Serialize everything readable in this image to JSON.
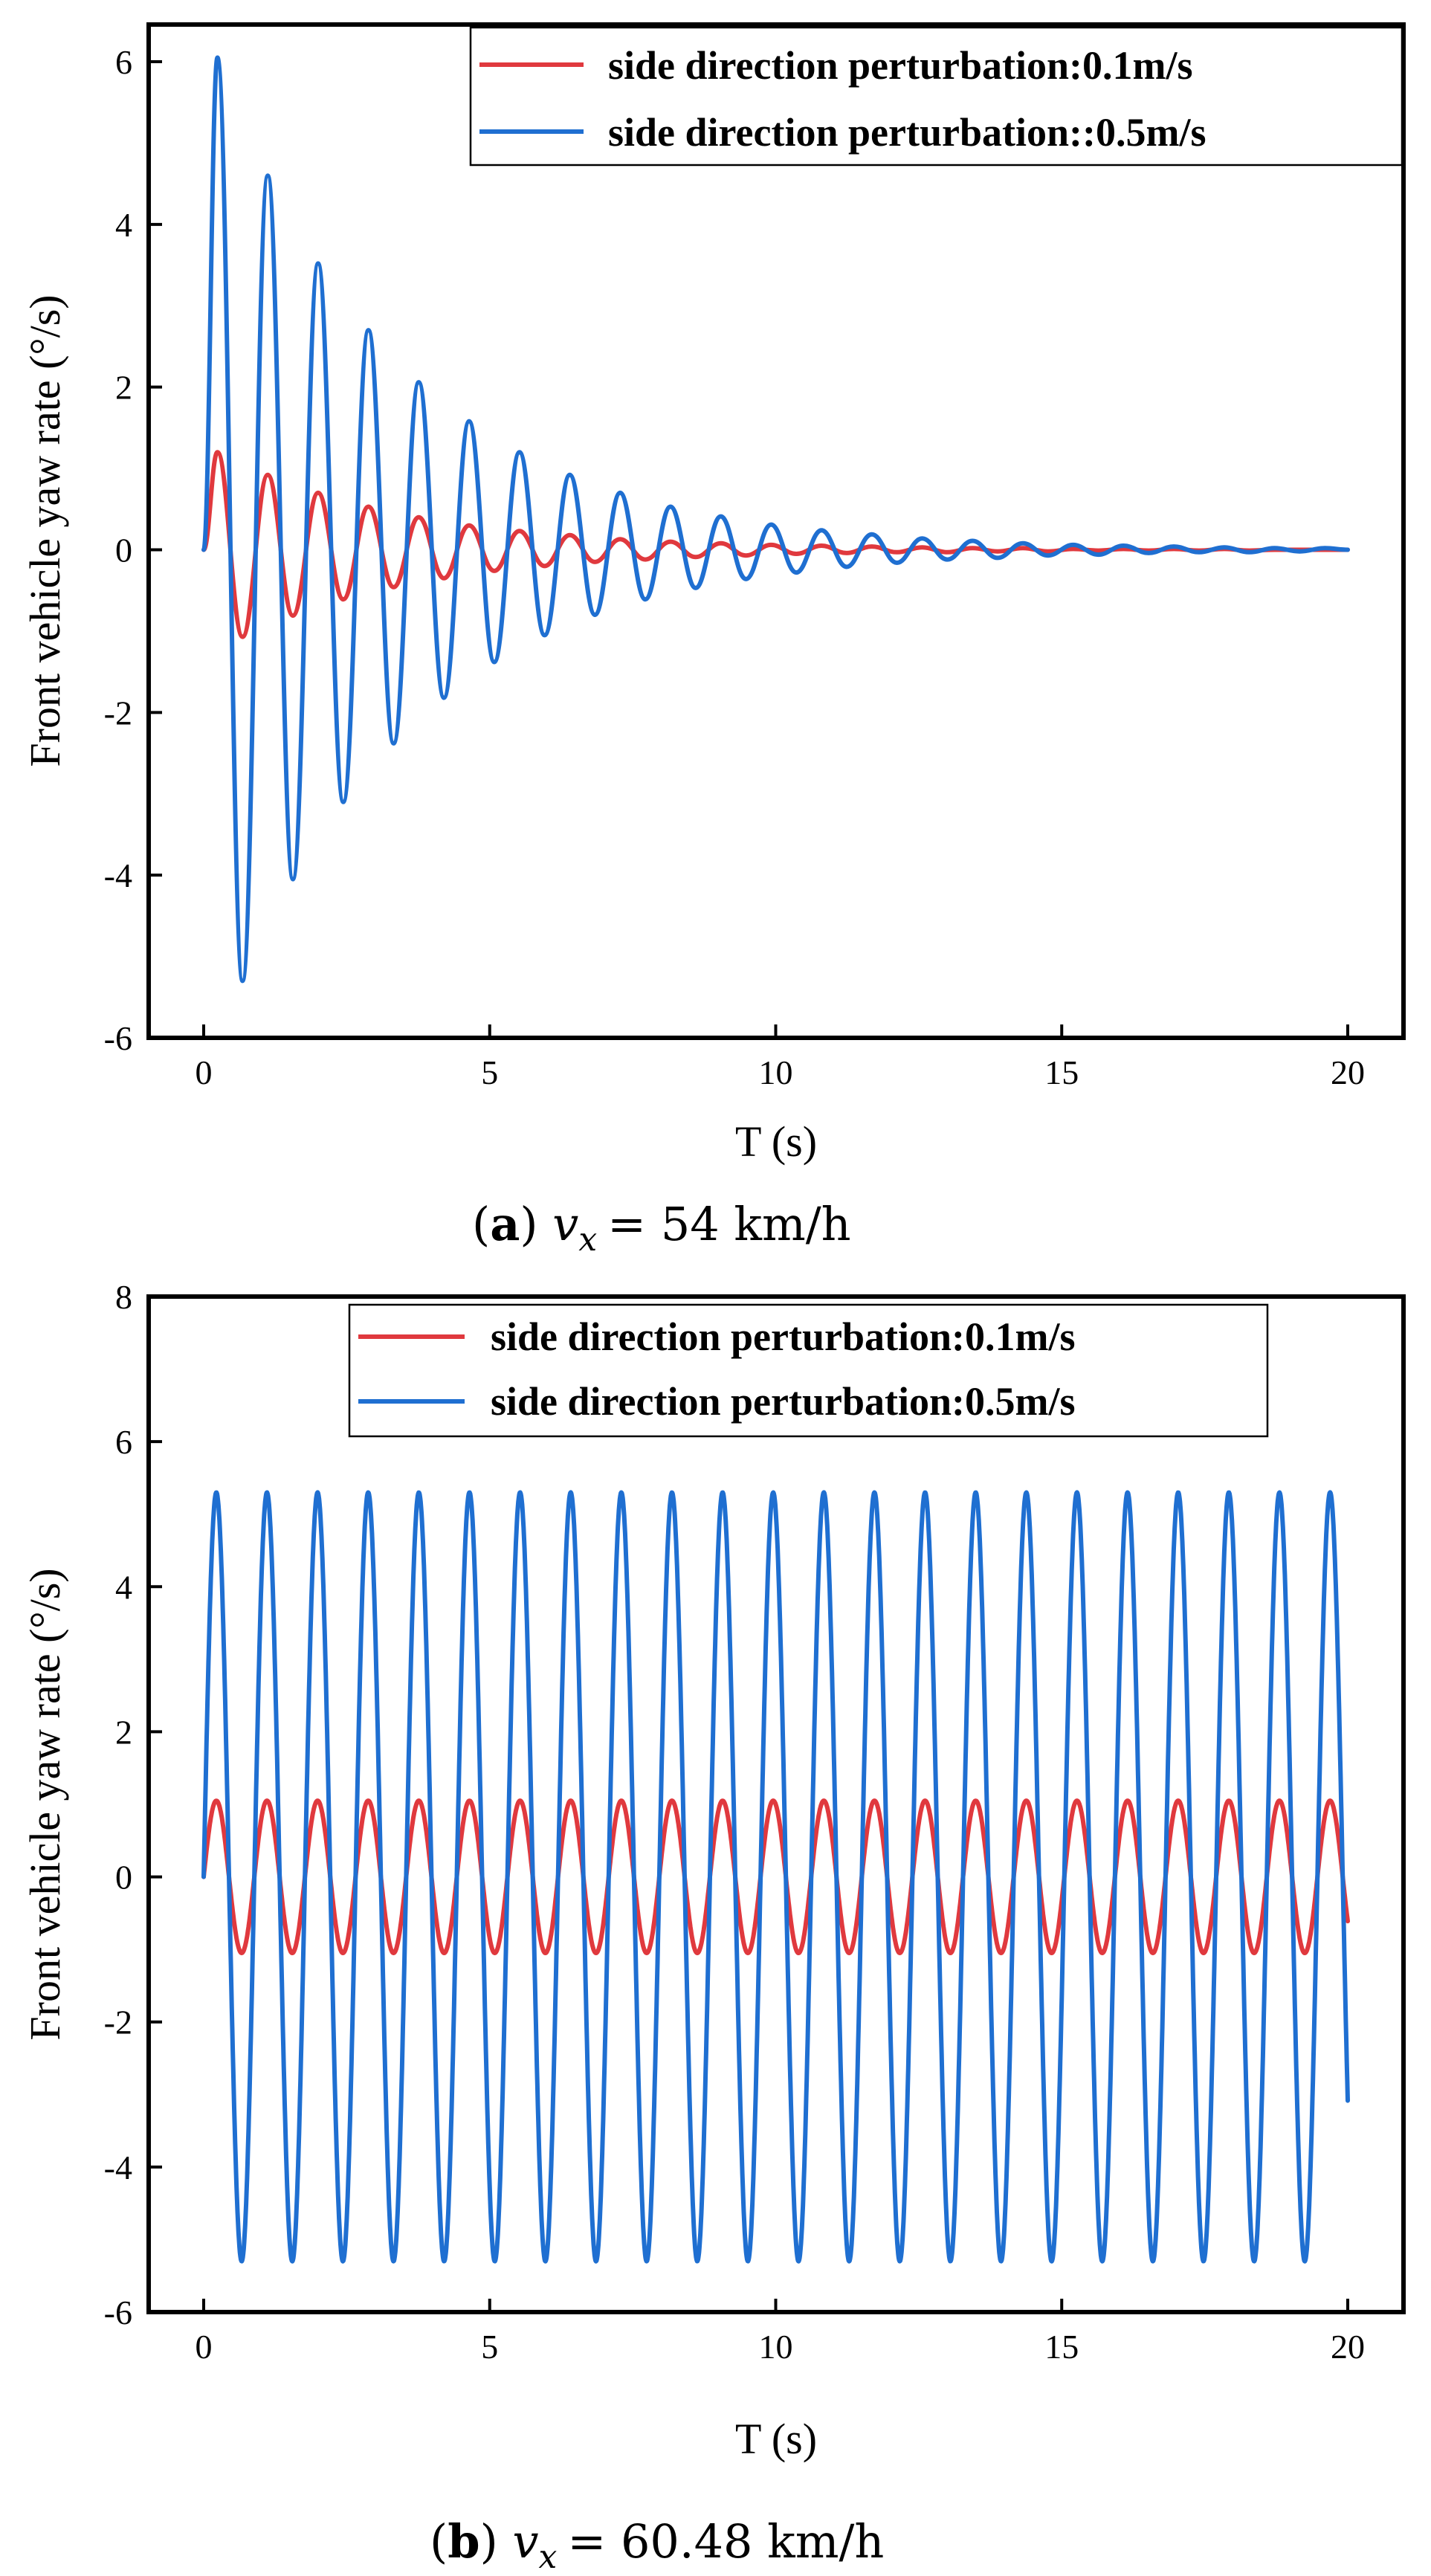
{
  "chart_data": [
    {
      "type": "line",
      "caption": {
        "letter": "a",
        "var": "v",
        "sub": "x",
        "value": "= 54 km/h"
      },
      "xlabel": "T (s)",
      "ylabel": "Front vehicle yaw rate (°/s)",
      "xlim": [
        0,
        20
      ],
      "ylim": [
        -6,
        6
      ],
      "xticks": [
        "0",
        "5",
        "10",
        "15",
        "20"
      ],
      "yticks": [
        "-6",
        "-4",
        "-2",
        "0",
        "2",
        "4",
        "6"
      ],
      "grid": false,
      "legend_position": "top-right",
      "series": [
        {
          "name": "side direction perturbation:0.1m/s",
          "color": "#e0393e",
          "x": [
            0,
            0.24,
            0.68,
            1.12,
            1.56,
            2.0,
            2.44,
            2.88,
            3.32,
            3.76,
            4.2,
            4.64,
            5.08,
            5.52,
            5.96,
            6.4,
            6.84,
            7.28,
            7.72,
            8.16,
            8.6,
            9.04,
            9.48,
            9.92,
            10.36,
            10.8,
            11.24,
            11.68,
            12.12,
            12.56,
            13.0,
            13.44,
            13.88,
            14.32,
            14.76,
            15.2,
            15.64,
            16.08,
            16.52,
            16.96,
            17.4,
            17.84,
            18.28,
            18.72,
            19.16,
            19.6,
            20.0
          ],
          "y": [
            0,
            1.2,
            -1.07,
            0.92,
            -0.81,
            0.7,
            -0.61,
            0.53,
            -0.46,
            0.4,
            -0.35,
            0.3,
            -0.26,
            0.23,
            -0.2,
            0.18,
            -0.15,
            0.13,
            -0.12,
            0.1,
            -0.09,
            0.08,
            -0.07,
            0.06,
            -0.05,
            0.05,
            -0.04,
            0.04,
            -0.03,
            0.03,
            -0.03,
            0.02,
            -0.02,
            0.02,
            -0.02,
            0.01,
            -0.01,
            0.01,
            -0.01,
            0.01,
            -0.01,
            0.01,
            -0.01,
            0,
            0,
            0,
            0
          ]
        },
        {
          "name": "side direction perturbation::0.5m/s",
          "color": "#1f6fd1",
          "x": [
            0,
            0.24,
            0.68,
            1.12,
            1.56,
            2.0,
            2.44,
            2.88,
            3.32,
            3.76,
            4.2,
            4.64,
            5.08,
            5.52,
            5.96,
            6.4,
            6.84,
            7.28,
            7.72,
            8.16,
            8.6,
            9.04,
            9.48,
            9.92,
            10.36,
            10.8,
            11.24,
            11.68,
            12.12,
            12.56,
            13.0,
            13.44,
            13.88,
            14.32,
            14.76,
            15.2,
            15.64,
            16.08,
            16.52,
            16.96,
            17.4,
            17.84,
            18.28,
            18.72,
            19.16,
            19.6,
            20.0
          ],
          "y": [
            0,
            6.05,
            -5.3,
            4.6,
            -4.05,
            3.52,
            -3.1,
            2.7,
            -2.38,
            2.06,
            -1.82,
            1.58,
            -1.38,
            1.2,
            -1.05,
            0.92,
            -0.8,
            0.7,
            -0.61,
            0.53,
            -0.47,
            0.41,
            -0.36,
            0.31,
            -0.28,
            0.24,
            -0.21,
            0.19,
            -0.16,
            0.14,
            -0.12,
            0.11,
            -0.1,
            0.08,
            -0.07,
            0.06,
            -0.06,
            0.05,
            -0.04,
            0.04,
            -0.03,
            0.03,
            -0.03,
            0.02,
            -0.02,
            0.02,
            0
          ]
        }
      ]
    },
    {
      "type": "line",
      "caption": {
        "letter": "b",
        "var": "v",
        "sub": "x",
        "value": "= 60.48 km/h"
      },
      "xlabel": "T (s)",
      "ylabel": "Front vehicle yaw rate (°/s)",
      "xlim": [
        0,
        20
      ],
      "ylim": [
        -6,
        8
      ],
      "xticks": [
        "0",
        "5",
        "10",
        "15",
        "20"
      ],
      "yticks": [
        "-6",
        "-4",
        "-2",
        "0",
        "2",
        "4",
        "6",
        "8"
      ],
      "grid": false,
      "legend_position": "top-center",
      "series": [
        {
          "name": "side direction perturbation:0.1m/s",
          "color": "#e0393e",
          "amplitude": 1.05,
          "period": 0.885,
          "x_end": 20
        },
        {
          "name": "side direction perturbation:0.5m/s",
          "color": "#1f6fd1",
          "amplitude": 5.3,
          "period": 0.885,
          "x_end": 20
        }
      ]
    }
  ]
}
